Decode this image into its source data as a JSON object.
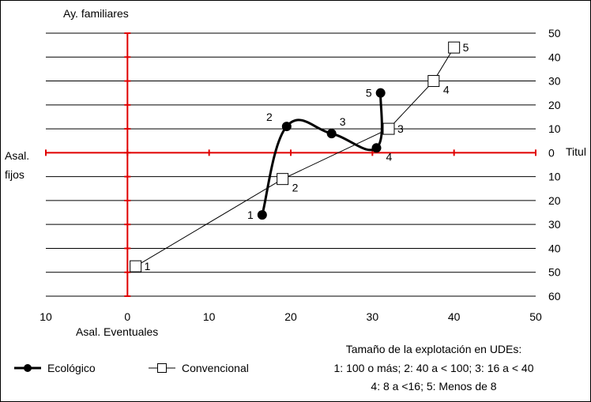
{
  "chart_data": {
    "type": "line",
    "top_axis_label": "Ay. familiares",
    "left_axis_label": [
      "Asal.",
      "fijos"
    ],
    "bottom_axis_label": "Asal. Eventuales",
    "right_axis_label": "Titul",
    "x_ticks": [
      {
        "label": "10",
        "value": -10,
        "color": "#e00000"
      },
      {
        "label": "0",
        "value": 0,
        "color": "#000000"
      },
      {
        "label": "10",
        "value": 10,
        "color": "#000000"
      },
      {
        "label": "20",
        "value": 20,
        "color": "#000000"
      },
      {
        "label": "30",
        "value": 30,
        "color": "#000000"
      },
      {
        "label": "40",
        "value": 40,
        "color": "#000000"
      },
      {
        "label": "50",
        "value": 50,
        "color": "#000000"
      }
    ],
    "y_ticks": [
      {
        "label": "50",
        "value": 50,
        "color": "#000000"
      },
      {
        "label": "40",
        "value": 40,
        "color": "#000000"
      },
      {
        "label": "30",
        "value": 30,
        "color": "#000000"
      },
      {
        "label": "20",
        "value": 20,
        "color": "#000000"
      },
      {
        "label": "10",
        "value": 10,
        "color": "#000000"
      },
      {
        "label": "0",
        "value": 0,
        "color": "#000000"
      },
      {
        "label": "10",
        "value": -10,
        "color": "#e00000"
      },
      {
        "label": "20",
        "value": -20,
        "color": "#e00000"
      },
      {
        "label": "30",
        "value": -30,
        "color": "#e00000"
      },
      {
        "label": "40",
        "value": -40,
        "color": "#e00000"
      },
      {
        "label": "50",
        "value": -50,
        "color": "#e00000"
      },
      {
        "label": "60",
        "value": -60,
        "color": "#e00000"
      }
    ],
    "xlim": [
      -10,
      50
    ],
    "ylim": [
      -60,
      50
    ],
    "grid": "horizontal",
    "axis_color": "#e00000",
    "series": [
      {
        "name": "Ecológico",
        "marker": "filled-circle",
        "line_width": "thick",
        "curve": "smooth",
        "color": "#000000",
        "points": [
          {
            "label": "1",
            "x": 16.5,
            "y": -26,
            "label_pos": "left"
          },
          {
            "label": "2",
            "x": 19.5,
            "y": 11,
            "label_pos": "upper-left"
          },
          {
            "label": "3",
            "x": 25,
            "y": 8,
            "label_pos": "upper-right"
          },
          {
            "label": "4",
            "x": 30.5,
            "y": 2,
            "label_pos": "lower-right"
          },
          {
            "label": "5",
            "x": 31,
            "y": 25,
            "label_pos": "left"
          }
        ]
      },
      {
        "name": "Convencional",
        "marker": "open-square",
        "line_width": "thin",
        "curve": "straight",
        "color": "#000000",
        "points": [
          {
            "label": "1",
            "x": 1,
            "y": -47.5,
            "label_pos": "right"
          },
          {
            "label": "2",
            "x": 19,
            "y": -11,
            "label_pos": "lower-right"
          },
          {
            "label": "3",
            "x": 32,
            "y": 10,
            "label_pos": "right"
          },
          {
            "label": "4",
            "x": 37.5,
            "y": 30,
            "label_pos": "lower-right"
          },
          {
            "label": "5",
            "x": 40,
            "y": 44,
            "label_pos": "right"
          }
        ]
      }
    ],
    "legend": {
      "placement": "bottom-left",
      "entries": [
        "Ecológico",
        "Convencional"
      ]
    },
    "note": {
      "title": "Tamaño de la explotación en UDEs:",
      "lines": [
        "1: 100 o más; 2: 40 a < 100; 3: 16 a < 40",
        "4: 8 a <16; 5: Menos de 8"
      ]
    }
  }
}
